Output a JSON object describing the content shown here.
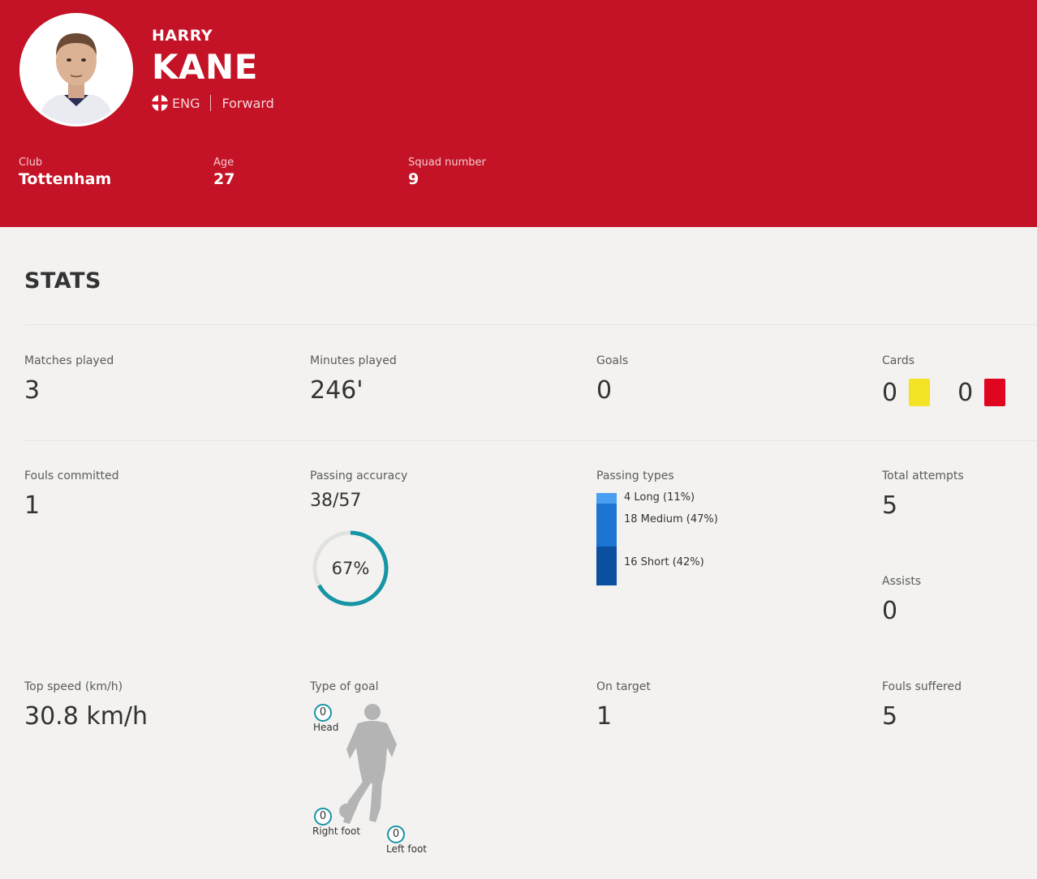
{
  "player": {
    "first_name": "HARRY",
    "last_name": "KANE",
    "country_code": "ENG",
    "position": "Forward"
  },
  "info": {
    "club": {
      "label": "Club",
      "value": "Tottenham"
    },
    "age": {
      "label": "Age",
      "value": "27"
    },
    "squad_number": {
      "label": "Squad number",
      "value": "9"
    }
  },
  "stats": {
    "title": "STATS",
    "matches_played": {
      "label": "Matches played",
      "value": "3"
    },
    "minutes_played": {
      "label": "Minutes played",
      "value": "246'"
    },
    "goals": {
      "label": "Goals",
      "value": "0"
    },
    "cards": {
      "label": "Cards",
      "yellow": "0",
      "red": "0"
    },
    "fouls_committed": {
      "label": "Fouls committed",
      "value": "1"
    },
    "passing_accuracy": {
      "label": "Passing accuracy",
      "value": "38/57",
      "percent_text": "67%",
      "percent": 67
    },
    "passing_types": {
      "label": "Passing types",
      "items": [
        {
          "text": "4 Long (11%)",
          "share": 11,
          "color": "#4a9ff0"
        },
        {
          "text": "18 Medium (47%)",
          "share": 47,
          "color": "#1c74d1"
        },
        {
          "text": "16 Short (42%)",
          "share": 42,
          "color": "#0b4fa0"
        }
      ]
    },
    "total_attempts": {
      "label": "Total attempts",
      "value": "5"
    },
    "assists": {
      "label": "Assists",
      "value": "0"
    },
    "top_speed": {
      "label": "Top speed (km/h)",
      "value": "30.8 km/h"
    },
    "type_of_goal": {
      "label": "Type of goal",
      "head": {
        "label": "Head",
        "value": "0"
      },
      "right_foot": {
        "label": "Right foot",
        "value": "0"
      },
      "left_foot": {
        "label": "Left foot",
        "value": "0"
      }
    },
    "on_target": {
      "label": "On target",
      "value": "1"
    },
    "fouls_suffered": {
      "label": "Fouls suffered",
      "value": "5"
    }
  },
  "colors": {
    "header_bg": "#c41226",
    "yellow_card": "#f4e225",
    "red_card": "#e0061f",
    "accuracy_ring": "#1795a6",
    "accuracy_track": "#e1e1e1"
  }
}
